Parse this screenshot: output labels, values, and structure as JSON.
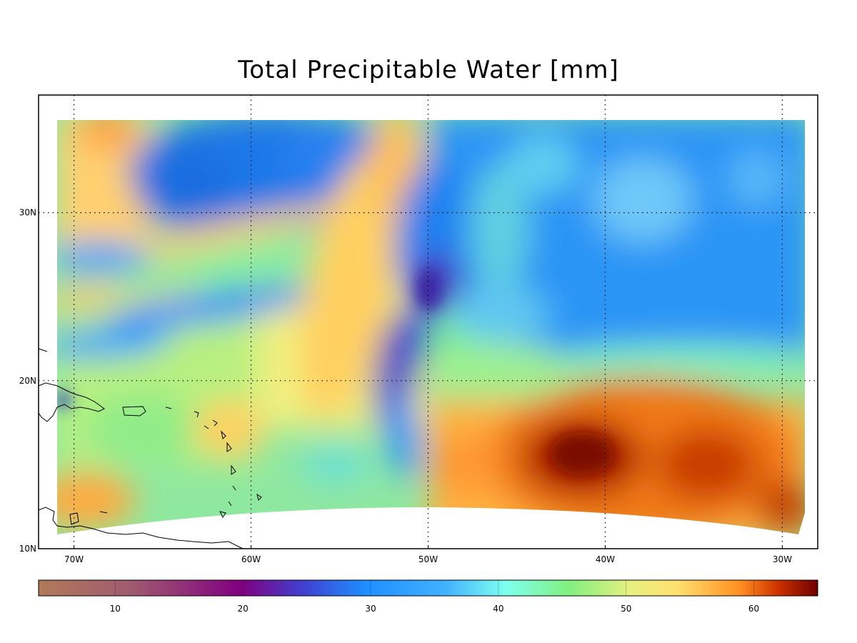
{
  "title": "Total Precipitable Water [mm]",
  "map": {
    "projection": "cylindrical",
    "lon_range_deg": [
      -72,
      -28
    ],
    "lat_range_deg": [
      10,
      37
    ],
    "grid": "dotted",
    "lon_ticks": [
      {
        "value": -70,
        "label": "70W"
      },
      {
        "value": -60,
        "label": "60W"
      },
      {
        "value": -50,
        "label": "50W"
      },
      {
        "value": -40,
        "label": "40W"
      },
      {
        "value": -30,
        "label": "30W"
      }
    ],
    "lat_ticks": [
      {
        "value": 30,
        "label": "30N"
      },
      {
        "value": 20,
        "label": "20N"
      },
      {
        "value": 10,
        "label": "10N"
      }
    ],
    "features": [
      "dry tongue (about 20 mm) near 52W 23N",
      "moist maximum (about 63 mm) near 41W 15N",
      "Greater and Lesser Antilles coastlines"
    ]
  },
  "colorbar": {
    "range": [
      4,
      65
    ],
    "ticks": [
      {
        "value": 10,
        "label": "10"
      },
      {
        "value": 20,
        "label": "20"
      },
      {
        "value": 30,
        "label": "30"
      },
      {
        "value": 40,
        "label": "40"
      },
      {
        "value": 50,
        "label": "50"
      },
      {
        "value": 60,
        "label": "60"
      }
    ],
    "colors": {
      "dry_brown": "#b07a5a",
      "purple": "#800080",
      "blue": "#1e8fff",
      "cyan": "#7fffef",
      "green": "#80f080",
      "yellow": "#ffee70",
      "orange": "#ff8800",
      "dark_red": "#6e0000"
    }
  }
}
